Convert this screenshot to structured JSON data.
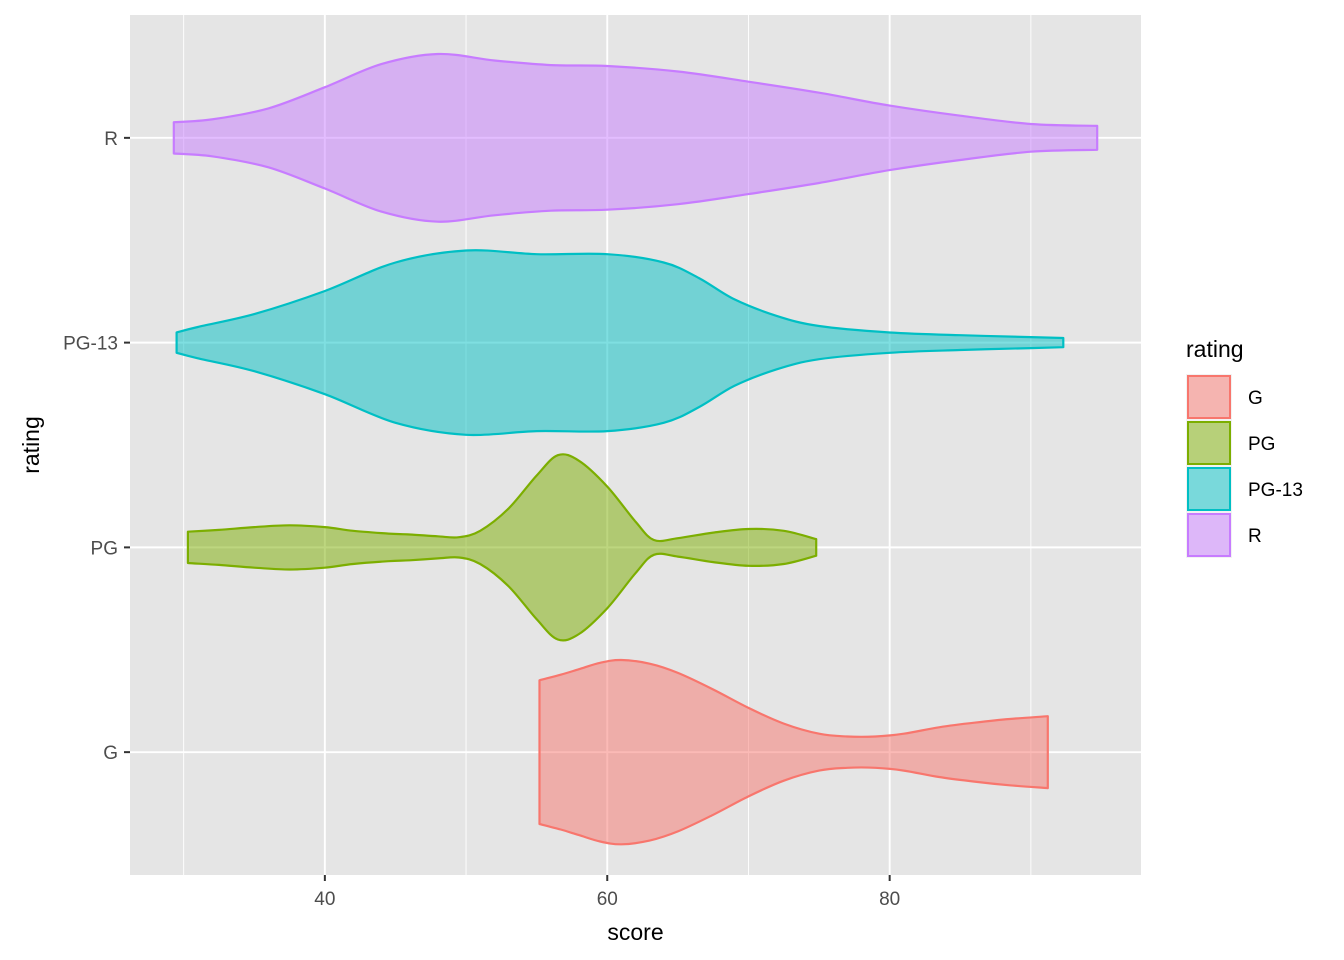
{
  "chart_data": {
    "type": "violin",
    "orientation": "horizontal",
    "xlabel": "score",
    "ylabel": "rating",
    "xlim": [
      26.2,
      97.8
    ],
    "x_ticks": [
      40,
      60,
      80
    ],
    "x_tick_labels": [
      "40",
      "60",
      "80"
    ],
    "x_minor_ticks": [
      30,
      50,
      70,
      90
    ],
    "categories": [
      "G",
      "PG",
      "PG-13",
      "R"
    ],
    "grid": true,
    "panel_background": "#e5e5e5",
    "legend": {
      "title": "rating",
      "position": "right",
      "entries": [
        "G",
        "PG",
        "PG-13",
        "R"
      ]
    },
    "series": [
      {
        "name": "G",
        "color": "#f8766d",
        "min": 55.2,
        "max": 91.2,
        "profile": [
          [
            55.2,
            0.78
          ],
          [
            56.7,
            0.84
          ],
          [
            58.0,
            0.9
          ],
          [
            59.5,
            0.97
          ],
          [
            61.0,
            1.0
          ],
          [
            63.0,
            0.96
          ],
          [
            65.0,
            0.86
          ],
          [
            67.5,
            0.68
          ],
          [
            70.0,
            0.48
          ],
          [
            72.5,
            0.31
          ],
          [
            75.0,
            0.2
          ],
          [
            77.0,
            0.17
          ],
          [
            79.0,
            0.17
          ],
          [
            81.0,
            0.2
          ],
          [
            83.5,
            0.27
          ],
          [
            86.0,
            0.32
          ],
          [
            88.5,
            0.36
          ],
          [
            91.2,
            0.39
          ]
        ]
      },
      {
        "name": "PG",
        "color": "#7cae00",
        "min": 30.3,
        "max": 74.8,
        "profile": [
          [
            30.3,
            0.17
          ],
          [
            32.5,
            0.19
          ],
          [
            35.0,
            0.22
          ],
          [
            37.5,
            0.24
          ],
          [
            40.0,
            0.22
          ],
          [
            42.0,
            0.18
          ],
          [
            44.5,
            0.15
          ],
          [
            46.0,
            0.14
          ],
          [
            48.0,
            0.12
          ],
          [
            49.5,
            0.11
          ],
          [
            51.0,
            0.18
          ],
          [
            53.0,
            0.42
          ],
          [
            55.0,
            0.78
          ],
          [
            56.5,
            1.0
          ],
          [
            58.0,
            0.94
          ],
          [
            60.0,
            0.66
          ],
          [
            62.0,
            0.28
          ],
          [
            63.3,
            0.08
          ],
          [
            65.0,
            0.1
          ],
          [
            67.5,
            0.16
          ],
          [
            70.0,
            0.2
          ],
          [
            72.5,
            0.18
          ],
          [
            74.8,
            0.09
          ]
        ]
      },
      {
        "name": "PG-13",
        "color": "#00bfc4",
        "min": 29.5,
        "max": 92.3,
        "profile": [
          [
            29.5,
            0.11
          ],
          [
            31.0,
            0.17
          ],
          [
            35.0,
            0.31
          ],
          [
            40.0,
            0.56
          ],
          [
            45.0,
            0.87
          ],
          [
            50.0,
            1.0
          ],
          [
            55.0,
            0.96
          ],
          [
            60.0,
            0.96
          ],
          [
            64.0,
            0.87
          ],
          [
            66.5,
            0.7
          ],
          [
            69.0,
            0.47
          ],
          [
            72.0,
            0.29
          ],
          [
            75.0,
            0.18
          ],
          [
            80.0,
            0.11
          ],
          [
            85.0,
            0.08
          ],
          [
            90.0,
            0.06
          ],
          [
            92.3,
            0.05
          ]
        ]
      },
      {
        "name": "R",
        "color": "#c77cff",
        "min": 29.3,
        "max": 94.7,
        "profile": [
          [
            29.3,
            0.17
          ],
          [
            32.0,
            0.2
          ],
          [
            36.0,
            0.32
          ],
          [
            40.0,
            0.55
          ],
          [
            44.0,
            0.8
          ],
          [
            48.0,
            0.91
          ],
          [
            52.0,
            0.84
          ],
          [
            56.0,
            0.79
          ],
          [
            60.0,
            0.78
          ],
          [
            65.0,
            0.72
          ],
          [
            70.0,
            0.61
          ],
          [
            75.0,
            0.49
          ],
          [
            80.0,
            0.35
          ],
          [
            85.0,
            0.24
          ],
          [
            90.0,
            0.15
          ],
          [
            94.7,
            0.13
          ]
        ]
      }
    ]
  }
}
